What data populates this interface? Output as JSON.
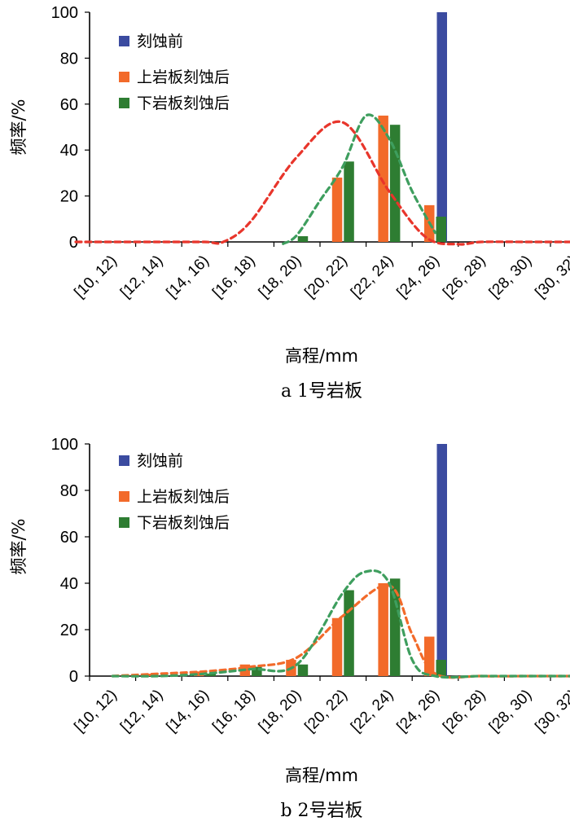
{
  "chart_data": [
    {
      "type": "bar",
      "caption": "a  1号岩板",
      "xlabel": "高程/mm",
      "ylabel": "频率/%",
      "ylim": [
        0,
        100
      ],
      "yticks": [
        "0",
        "20",
        "40",
        "60",
        "80",
        "100"
      ],
      "categories": [
        "[10, 12)",
        "[12, 14)",
        "[14, 16)",
        "[16, 18)",
        "[18, 20)",
        "[20, 22)",
        "[22, 24)",
        "[24, 26)",
        "[26, 28)",
        "[28, 30)",
        "[30, 32)"
      ],
      "legend_position": "top-left",
      "series": [
        {
          "name": "刻蚀前",
          "color": "#3B4BA0",
          "values": [
            0,
            0,
            0,
            0,
            0,
            0,
            0,
            100,
            0,
            0,
            0
          ]
        },
        {
          "name": "上岩板刻蚀后",
          "color": "#F26A2A",
          "values": [
            0,
            0,
            0,
            0,
            0,
            28,
            55,
            16,
            0,
            0,
            0
          ]
        },
        {
          "name": "下岩板刻蚀后",
          "color": "#2E7D32",
          "values": [
            0,
            0,
            0,
            0,
            2.5,
            35,
            51,
            11,
            0,
            0,
            0
          ]
        }
      ],
      "trendlines": [
        {
          "name": "上岩板刻蚀后趋势",
          "color": "#E8352B",
          "x": [
            -0.3,
            0.5,
            1.5,
            2.5,
            2.9,
            3.5,
            4.5,
            5.5,
            6.5,
            7.3,
            8.0,
            8.5,
            9.5,
            10.5
          ],
          "y": [
            0,
            0,
            0,
            0,
            0,
            9,
            37,
            52,
            22,
            2,
            -1,
            0,
            0,
            0
          ]
        },
        {
          "name": "下岩板刻蚀后趋势",
          "color": "#3E9E5E",
          "x": [
            4.2,
            4.5,
            5.0,
            5.5,
            6.0,
            6.5,
            7.0,
            7.5
          ],
          "y": [
            -0.8,
            3,
            18,
            33,
            55,
            45,
            22,
            4
          ]
        }
      ]
    },
    {
      "type": "bar",
      "caption": "b  2号岩板",
      "xlabel": "高程/mm",
      "ylabel": "频率/%",
      "ylim": [
        0,
        100
      ],
      "yticks": [
        "0",
        "20",
        "40",
        "60",
        "80",
        "100"
      ],
      "categories": [
        "[10, 12)",
        "[12, 14)",
        "[14, 16)",
        "[16, 18)",
        "[18, 20)",
        "[20, 22)",
        "[22, 24)",
        "[24, 26)",
        "[26, 28)",
        "[28, 30)",
        "[30, 32)"
      ],
      "legend_position": "top-left",
      "series": [
        {
          "name": "刻蚀前",
          "color": "#3B4BA0",
          "values": [
            0,
            0,
            0,
            0,
            0,
            0,
            0,
            100,
            0,
            0,
            0
          ]
        },
        {
          "name": "上岩板刻蚀后",
          "color": "#F26A2A",
          "values": [
            0,
            1,
            2,
            5,
            7,
            25,
            40,
            17,
            0,
            0,
            0
          ]
        },
        {
          "name": "下岩板刻蚀后",
          "color": "#2E7D32",
          "values": [
            0,
            0,
            1,
            4,
            5,
            37,
            42,
            7,
            0,
            0,
            0
          ]
        }
      ],
      "trendlines": [
        {
          "name": "上岩板刻蚀后趋势",
          "color": "#F26A2A",
          "x": [
            0.5,
            1.5,
            2.5,
            3.5,
            4.5,
            5.5,
            6.5,
            7.0,
            7.5,
            8.5,
            9.5,
            10.5
          ],
          "y": [
            0,
            1,
            2,
            4,
            8,
            26,
            39,
            18,
            1,
            0,
            0,
            0
          ]
        },
        {
          "name": "下岩板刻蚀后趋势",
          "color": "#3E9E5E",
          "x": [
            0.5,
            1.5,
            2.5,
            3.5,
            4.5,
            5.5,
            6.0,
            6.5,
            7.0,
            7.5,
            8.5,
            9.5,
            10.5
          ],
          "y": [
            0,
            0,
            1,
            3,
            5,
            36,
            45,
            40,
            7,
            0,
            0,
            0,
            0
          ]
        }
      ]
    }
  ]
}
